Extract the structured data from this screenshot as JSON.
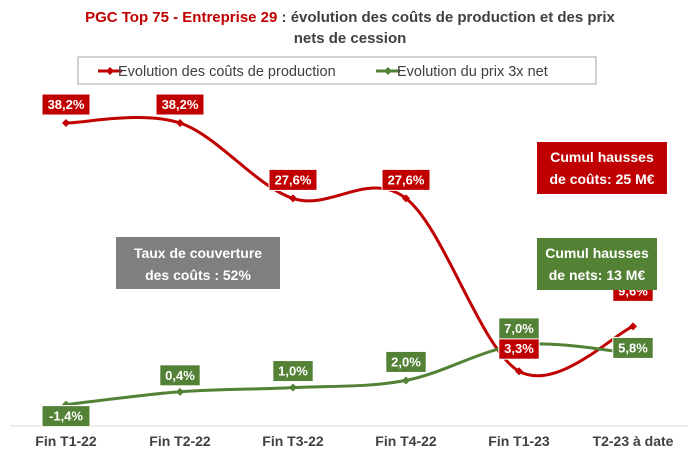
{
  "chart_data": {
    "type": "line",
    "title_part1": "PGC Top 75 - Entreprise 29",
    "title_part2": " : évolution des coûts de production et des prix",
    "title_line2": "nets de cession",
    "categories": [
      "Fin T1-22",
      "Fin T2-22",
      "Fin T3-22",
      "Fin T4-22",
      "Fin T1-23",
      "T2-23 à date"
    ],
    "series": [
      {
        "name": "Evolution des coûts de production",
        "color": "#c00000",
        "values": [
          38.2,
          38.2,
          27.6,
          27.6,
          3.3,
          9.6
        ],
        "labels": [
          "38,2%",
          "38,2%",
          "27,6%",
          "27,6%",
          "3,3%",
          "9,6%"
        ]
      },
      {
        "name": "Evolution du prix 3x net",
        "color": "#538135",
        "values": [
          -1.4,
          0.4,
          1.0,
          2.0,
          7.0,
          5.8
        ],
        "labels": [
          "-1,4%",
          "0,4%",
          "1,0%",
          "2,0%",
          "7,0%",
          "5,8%"
        ]
      }
    ],
    "ylim": [
      -3,
      42
    ],
    "legend_position": "top",
    "grid": false
  },
  "annotations": {
    "cost_box": {
      "line1": "Cumul hausses",
      "line2": "de coûts: 25 M€",
      "color": "#c00000"
    },
    "net_box": {
      "line1": "Cumul hausses",
      "line2": "de nets: 13 M€",
      "color": "#548235"
    },
    "coverage_box": {
      "line1": "Taux de couverture",
      "line2": "des coûts : 52%",
      "color": "#7f7f7f"
    }
  }
}
